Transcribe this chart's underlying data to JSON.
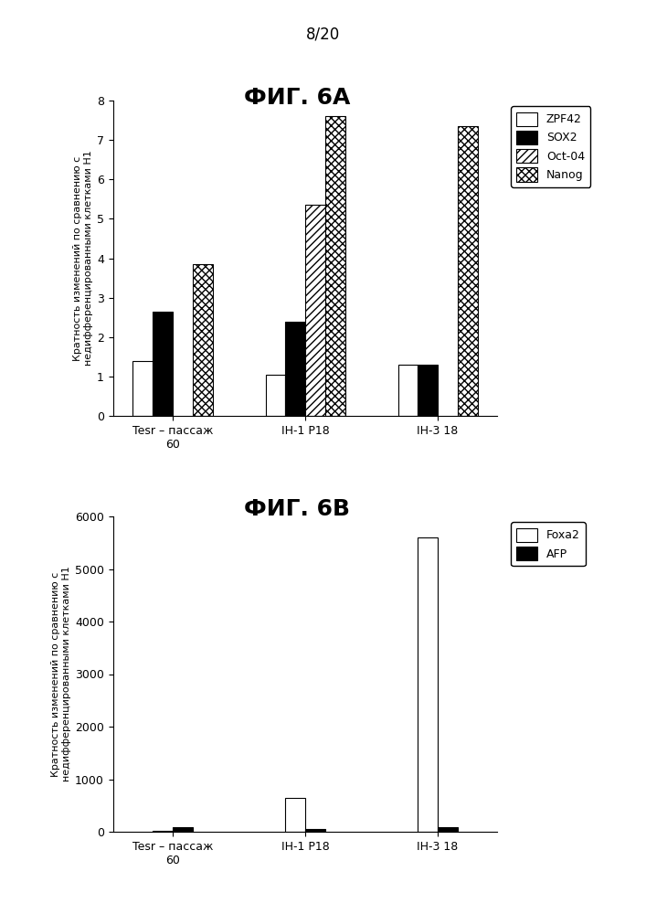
{
  "page_label": "8/20",
  "fig6A": {
    "title": "ФИГ. 6А",
    "categories": [
      "Tesr – пассаж\n60",
      "IH-1 P18",
      "IH-3 18"
    ],
    "series": [
      {
        "label": "ZPF42",
        "color": "white",
        "edgecolor": "black",
        "hatch": null,
        "values": [
          1.4,
          1.05,
          1.3
        ]
      },
      {
        "label": "SOX2",
        "color": "black",
        "edgecolor": "black",
        "hatch": null,
        "values": [
          2.65,
          2.38,
          1.3
        ]
      },
      {
        "label": "Oct-04",
        "color": "white",
        "edgecolor": "black",
        "hatch": "////",
        "values": [
          0.0,
          5.35,
          0.0
        ]
      },
      {
        "label": "Nanog",
        "color": "white",
        "edgecolor": "black",
        "hatch": "xxxx",
        "values": [
          3.85,
          7.6,
          7.35
        ]
      }
    ],
    "ylabel": "Кратность изменений по сравнению с\nнедифференцированными клетками H1",
    "ylim": [
      0,
      8
    ],
    "yticks": [
      0,
      1,
      2,
      3,
      4,
      5,
      6,
      7,
      8
    ],
    "legend_labels": [
      "ZPF42",
      "SOX2",
      "Oct-04",
      "Nanog"
    ]
  },
  "fig6B": {
    "title": "ФИГ. 6В",
    "categories": [
      "Tesr – пассаж\n60",
      "IH-1 P18",
      "IH-3 18"
    ],
    "series": [
      {
        "label": "Foxa2",
        "color": "white",
        "edgecolor": "black",
        "hatch": null,
        "values": [
          10,
          650,
          5600
        ]
      },
      {
        "label": "AFP",
        "color": "black",
        "edgecolor": "black",
        "hatch": null,
        "values": [
          80,
          60,
          80
        ]
      }
    ],
    "ylabel": "Кратность изменений по сравнению с\nнедифференцированными клетками H1",
    "ylim": [
      0,
      6000
    ],
    "yticks": [
      0,
      1000,
      2000,
      3000,
      4000,
      5000,
      6000
    ],
    "legend_labels": [
      "Foxa2",
      "AFP"
    ]
  }
}
